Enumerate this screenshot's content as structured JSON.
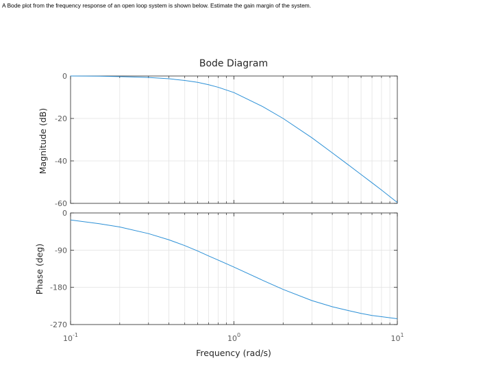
{
  "question": "A Bode plot from the frequency response of an open loop system is shown below. Estimate the gain margin of the system.",
  "colors": {
    "line": "#2a8fd6",
    "axes": "#262626",
    "grid": "#e3e3e3",
    "tick_text": "#5a5a5a"
  },
  "chart_data": {
    "type": "line",
    "title": "Bode Diagram",
    "xlabel": "Frequency (rad/s)",
    "x_scale": "log",
    "xlim": [
      0.1,
      10
    ],
    "x_ticks": [
      {
        "base": "10",
        "exp": "-1"
      },
      {
        "base": "10",
        "exp": "0"
      },
      {
        "base": "10",
        "exp": "1"
      }
    ],
    "grid": true,
    "panels": [
      {
        "name": "magnitude",
        "ylabel": "Magnitude (dB)",
        "ylim": [
          -60,
          0
        ],
        "y_ticks": [
          "0",
          "-20",
          "-40",
          "-60"
        ],
        "series": [
          {
            "x": [
              0.1,
              0.15,
              0.2,
              0.3,
              0.4,
              0.5,
              0.6,
              0.7,
              0.8,
              1.0,
              1.5,
              2.0,
              3.0,
              4.0,
              5.0,
              6.0,
              7.0,
              8.0,
              10.0
            ],
            "y": [
              0.0,
              -0.1,
              -0.3,
              -0.7,
              -1.3,
              -2.1,
              -3.0,
              -4.1,
              -5.3,
              -7.8,
              -14.4,
              -20.0,
              -29.1,
              -36.2,
              -41.8,
              -46.4,
              -50.3,
              -53.7,
              -59.6
            ]
          }
        ]
      },
      {
        "name": "phase",
        "ylabel": "Phase (deg)",
        "ylim": [
          -270,
          0
        ],
        "y_ticks": [
          "0",
          "-90",
          "-180",
          "-270"
        ],
        "series": [
          {
            "x": [
              0.1,
              0.15,
              0.2,
              0.3,
              0.4,
              0.5,
              0.6,
              0.7,
              0.8,
              1.0,
              1.5,
              2.0,
              3.0,
              4.0,
              5.0,
              6.0,
              7.0,
              8.0,
              10.0
            ],
            "y": [
              -17,
              -26,
              -34,
              -50,
              -65,
              -79,
              -92,
              -104,
              -114,
              -131,
              -163,
              -185,
              -212,
              -227,
              -236,
              -243,
              -248,
              -251,
              -256
            ]
          }
        ]
      }
    ]
  }
}
